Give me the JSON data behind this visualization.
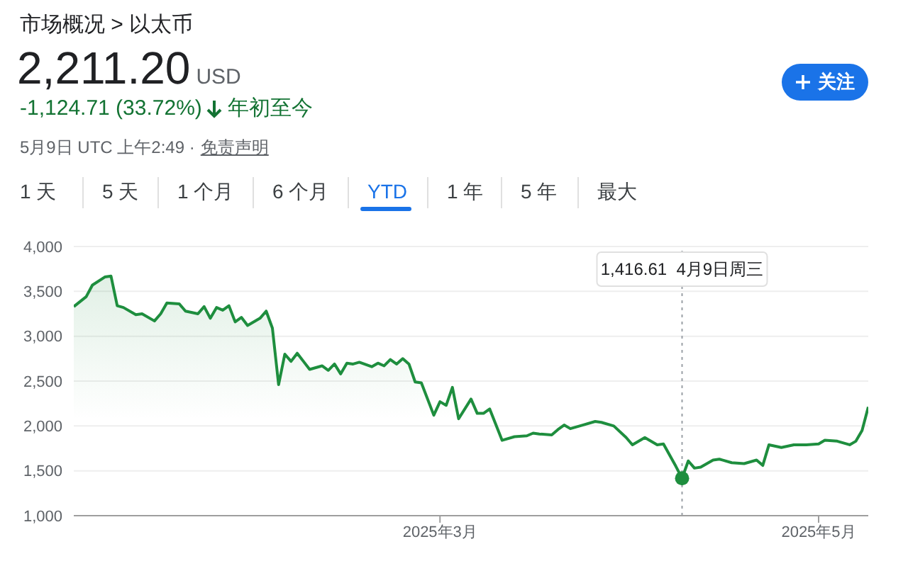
{
  "chart_data": {
    "type": "area",
    "title": "市场概况 > 以太币",
    "subtitle": "2,211.20",
    "x": [
      "2025-01-01",
      "2025-01-03",
      "2025-01-04",
      "2025-01-06",
      "2025-01-07",
      "2025-01-08",
      "2025-01-09",
      "2025-01-11",
      "2025-01-12",
      "2025-01-14",
      "2025-01-15",
      "2025-01-16",
      "2025-01-18",
      "2025-01-19",
      "2025-01-21",
      "2025-01-22",
      "2025-01-23",
      "2025-01-24",
      "2025-01-25",
      "2025-01-26",
      "2025-01-27",
      "2025-01-28",
      "2025-01-29",
      "2025-01-31",
      "2025-02-01",
      "2025-02-02",
      "2025-02-03",
      "2025-02-04",
      "2025-02-05",
      "2025-02-06",
      "2025-02-07",
      "2025-02-08",
      "2025-02-10",
      "2025-02-11",
      "2025-02-12",
      "2025-02-13",
      "2025-02-14",
      "2025-02-15",
      "2025-02-16",
      "2025-02-18",
      "2025-02-19",
      "2025-02-20",
      "2025-02-21",
      "2025-02-22",
      "2025-02-23",
      "2025-02-24",
      "2025-02-25",
      "2025-02-26",
      "2025-02-28",
      "2025-03-01",
      "2025-03-02",
      "2025-03-03",
      "2025-03-04",
      "2025-03-06",
      "2025-03-07",
      "2025-03-08",
      "2025-03-09",
      "2025-03-11",
      "2025-03-13",
      "2025-03-15",
      "2025-03-16",
      "2025-03-17",
      "2025-03-19",
      "2025-03-20",
      "2025-03-21",
      "2025-03-22",
      "2025-03-24",
      "2025-03-26",
      "2025-03-27",
      "2025-03-29",
      "2025-03-31",
      "2025-04-01",
      "2025-04-03",
      "2025-04-05",
      "2025-04-06",
      "2025-04-08",
      "2025-04-09",
      "2025-04-10",
      "2025-04-11",
      "2025-04-12",
      "2025-04-14",
      "2025-04-15",
      "2025-04-17",
      "2025-04-19",
      "2025-04-21",
      "2025-04-22",
      "2025-04-23",
      "2025-04-25",
      "2025-04-27",
      "2025-04-29",
      "2025-05-01",
      "2025-05-02",
      "2025-05-04",
      "2025-05-06",
      "2025-05-07",
      "2025-05-08",
      "2025-05-09"
    ],
    "series": [
      {
        "color": "#1e8e3e",
        "values": [
          3330,
          3440,
          3570,
          3660,
          3670,
          3340,
          3320,
          3240,
          3250,
          3170,
          3250,
          3370,
          3360,
          3280,
          3250,
          3330,
          3200,
          3320,
          3290,
          3340,
          3160,
          3210,
          3120,
          3200,
          3280,
          3090,
          2460,
          2800,
          2720,
          2810,
          2720,
          2630,
          2670,
          2620,
          2690,
          2580,
          2700,
          2690,
          2710,
          2660,
          2700,
          2670,
          2740,
          2690,
          2750,
          2690,
          2490,
          2480,
          2120,
          2270,
          2230,
          2430,
          2080,
          2300,
          2140,
          2140,
          2190,
          1840,
          1880,
          1890,
          1920,
          1910,
          1900,
          1960,
          2010,
          1970,
          2010,
          2050,
          2040,
          2000,
          1870,
          1790,
          1870,
          1790,
          1800,
          1550,
          1416.61,
          1610,
          1530,
          1540,
          1620,
          1630,
          1590,
          1580,
          1620,
          1560,
          1790,
          1760,
          1790,
          1790,
          1800,
          1840,
          1830,
          1790,
          1830,
          1950,
          2211.2
        ]
      }
    ],
    "xlim": [
      "2025-01-01",
      "2025-05-09"
    ],
    "xticks": [
      {
        "value": "2025-03-01",
        "label": "2025年3月"
      },
      {
        "value": "2025-05-01",
        "label": "2025年5月"
      }
    ],
    "ylim": [
      1000,
      4000
    ],
    "yticks": [
      {
        "value": 1000,
        "label": "1,000"
      },
      {
        "value": 1500,
        "label": "1,500"
      },
      {
        "value": 2000,
        "label": "2,000"
      },
      {
        "value": 2500,
        "label": "2,500"
      },
      {
        "value": 3000,
        "label": "3,000"
      },
      {
        "value": 3500,
        "label": "3,500"
      },
      {
        "value": 4000,
        "label": "4,000"
      }
    ],
    "grid": "y",
    "ref_lines": [
      {
        "axis": "x",
        "value": "2025-04-09",
        "color": "#9aa0a6",
        "line_style": "dotted",
        "label": "1,416.61  4月9日周三"
      }
    ],
    "annotations": [
      "USD",
      "-1,124.71 (33.72%)",
      "年初至今",
      "5月9日 UTC 上午2:49 ·",
      "免责声明",
      "关注",
      "1 天",
      "5 天",
      "1 个月",
      "6 个月",
      "YTD",
      "1 年",
      "5 年",
      "最大"
    ]
  }
}
